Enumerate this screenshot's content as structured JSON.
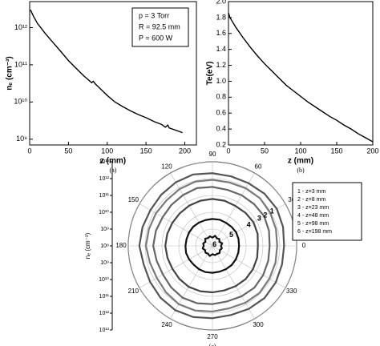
{
  "chart_data": [
    {
      "type": "line",
      "caption": "(a)",
      "x_label": "z (mm)",
      "y_label": "nₑ (cm⁻³)",
      "log_y": true,
      "annotations": [
        "p = 3 Torr",
        "R = 92.5 mm",
        "P = 600 W"
      ],
      "x": [
        1,
        5,
        10,
        20,
        30,
        40,
        50,
        60,
        70,
        80,
        82,
        85,
        90,
        100,
        110,
        120,
        130,
        140,
        150,
        160,
        170,
        175,
        178,
        180,
        190,
        197
      ],
      "series": [
        {
          "color": "#000000",
          "values": [
            3000000000000.0,
            2000000000000.0,
            1300000000000.0,
            700000000000.0,
            400000000000.0,
            230000000000.0,
            130000000000.0,
            80000000000.0,
            50000000000.0,
            33000000000.0,
            36000000000.0,
            30000000000.0,
            24000000000.0,
            15000000000.0,
            10000000000.0,
            7500000000.0,
            5800000000.0,
            4600000000.0,
            3800000000.0,
            3000000000.0,
            2500000000.0,
            2100000000.0,
            2400000000.0,
            2000000000.0,
            1700000000.0,
            1500000000.0
          ]
        }
      ],
      "xlim": [
        0,
        215
      ],
      "xticks": [
        0,
        50,
        100,
        150,
        200
      ],
      "ylim": [
        700000000.0,
        5000000000000.0
      ],
      "yticks": [
        {
          "value": 1000000000.0,
          "label": "10⁹"
        },
        {
          "value": 10000000000.0,
          "label": "10¹⁰"
        },
        {
          "value": 100000000000.0,
          "label": "10¹¹"
        },
        {
          "value": 1000000000000.0,
          "label": "10¹²"
        }
      ],
      "grid": false
    },
    {
      "type": "line",
      "caption": "(b)",
      "x_label": "z (mm)",
      "y_label": "Te(eV)",
      "log_y": false,
      "x": [
        0,
        2,
        10,
        20,
        30,
        40,
        50,
        60,
        70,
        80,
        90,
        100,
        110,
        120,
        130,
        140,
        150,
        160,
        170,
        180,
        190,
        200
      ],
      "series": [
        {
          "color": "#000000",
          "values": [
            1.86,
            1.8,
            1.68,
            1.55,
            1.43,
            1.32,
            1.22,
            1.13,
            1.04,
            0.95,
            0.88,
            0.81,
            0.74,
            0.68,
            0.62,
            0.56,
            0.51,
            0.45,
            0.4,
            0.34,
            0.29,
            0.24
          ]
        }
      ],
      "xlim": [
        0,
        200
      ],
      "xticks": [
        0,
        50,
        100,
        150,
        200
      ],
      "ylim": [
        0.2,
        2.0
      ],
      "yticks": [
        0.2,
        0.4,
        0.6,
        0.8,
        {
          "value": 1,
          "label": "1.0"
        },
        1.2,
        1.4,
        1.6,
        1.8,
        {
          "value": 2,
          "label": "2.0"
        }
      ],
      "grid": false
    },
    {
      "type": "polar",
      "caption": "(c)",
      "r_label": "nₑ (cm⁻³)",
      "log_r": true,
      "grid": true,
      "theta": [
        0,
        15,
        30,
        45,
        60,
        75,
        90,
        105,
        120,
        135,
        150,
        165,
        180,
        195,
        210,
        225,
        240,
        255,
        270,
        285,
        300,
        315,
        330,
        345
      ],
      "thetaticks": [
        0,
        30,
        60,
        90,
        120,
        150,
        180,
        210,
        240,
        270,
        300,
        330
      ],
      "rlim": [
        100000000.0,
        10000000000000.0
      ],
      "rticks": [
        {
          "value": 100000000.0,
          "label": "10⁸"
        },
        {
          "value": 1000000000.0,
          "label": "10⁹"
        },
        {
          "value": 10000000000.0,
          "label": "10¹⁰"
        },
        {
          "value": 100000000000.0,
          "label": "10¹¹"
        },
        {
          "value": 1000000000000.0,
          "label": "10¹²"
        },
        {
          "value": 10000000000000.0,
          "label": "10¹³"
        }
      ],
      "curve_labels": [
        "1",
        "2",
        "3",
        "4",
        "5",
        "6"
      ],
      "series": [
        {
          "name": "1 - z=3 mm",
          "color": "#555555",
          "values": [
            1800000000000.0,
            2200000000000.0,
            2600000000000.0,
            2400000000000.0,
            2000000000000.0,
            1900000000000.0,
            2100000000000.0,
            2500000000000.0,
            2300000000000.0,
            2000000000000.0,
            1800000000000.0,
            2000000000000.0,
            2200000000000.0,
            1700000000000.0,
            1900000000000.0,
            2300000000000.0,
            2600000000000.0,
            2400000000000.0,
            2000000000000.0,
            1800000000000.0,
            2100000000000.0,
            2400000000000.0,
            2200000000000.0,
            1900000000000.0
          ]
        },
        {
          "name": "2 - z=8 mm",
          "color": "#7a7a7a",
          "values": [
            700000000000.0,
            800000000000.0,
            900000000000.0,
            1000000000000.0,
            900000000000.0,
            800000000000.0,
            850000000000.0,
            900000000000.0,
            800000000000.0,
            700000000000.0,
            750000000000.0,
            800000000000.0,
            900000000000.0,
            700000000000.0,
            650000000000.0,
            800000000000.0,
            1000000000000.0,
            950000000000.0,
            800000000000.0,
            700000000000.0,
            800000000000.0,
            900000000000.0,
            800000000000.0,
            750000000000.0
          ]
        },
        {
          "name": "3 - z=23 mm",
          "color": "#666666",
          "values": [
            250000000000.0,
            300000000000.0,
            350000000000.0,
            320000000000.0,
            300000000000.0,
            280000000000.0,
            320000000000.0,
            360000000000.0,
            310000000000.0,
            280000000000.0,
            260000000000.0,
            300000000000.0,
            330000000000.0,
            270000000000.0,
            250000000000.0,
            300000000000.0,
            360000000000.0,
            340000000000.0,
            290000000000.0,
            260000000000.0,
            290000000000.0,
            330000000000.0,
            300000000000.0,
            270000000000.0
          ]
        },
        {
          "name": "4 - z=48 mm",
          "color": "#444444",
          "values": [
            50000000000.0,
            60000000000.0,
            65000000000.0,
            60000000000.0,
            55000000000.0,
            60000000000.0,
            62000000000.0,
            60000000000.0,
            58000000000.0,
            55000000000.0,
            56000000000.0,
            60000000000.0,
            63000000000.0,
            58000000000.0,
            55000000000.0,
            60000000000.0,
            65000000000.0,
            62000000000.0,
            58000000000.0,
            55000000000.0,
            58000000000.0,
            62000000000.0,
            60000000000.0,
            56000000000.0
          ]
        },
        {
          "name": "5 - z=98 mm",
          "color": "#111111",
          "values": [
            3800000000.0,
            4000000000.0,
            4200000000.0,
            4000000000.0,
            3900000000.0,
            4100000000.0,
            4000000000.0,
            3900000000.0,
            4000000000.0,
            4100000000.0,
            4000000000.0,
            3900000000.0,
            4000000000.0,
            4200000000.0,
            4000000000.0,
            3800000000.0,
            4000000000.0,
            4100000000.0,
            4000000000.0,
            3900000000.0,
            4000000000.0,
            4100000000.0,
            4000000000.0,
            3900000000.0
          ]
        },
        {
          "name": "6 - z=198 mm",
          "color": "#111111",
          "values": [
            320000000.0,
            400000000.0,
            300000000.0,
            380000000.0,
            330000000.0,
            420000000.0,
            310000000.0,
            390000000.0,
            340000000.0,
            410000000.0,
            300000000.0,
            370000000.0,
            330000000.0,
            400000000.0,
            320000000.0,
            380000000.0,
            340000000.0,
            420000000.0,
            310000000.0,
            370000000.0,
            350000000.0,
            400000000.0,
            320000000.0,
            380000000.0
          ]
        }
      ]
    }
  ]
}
